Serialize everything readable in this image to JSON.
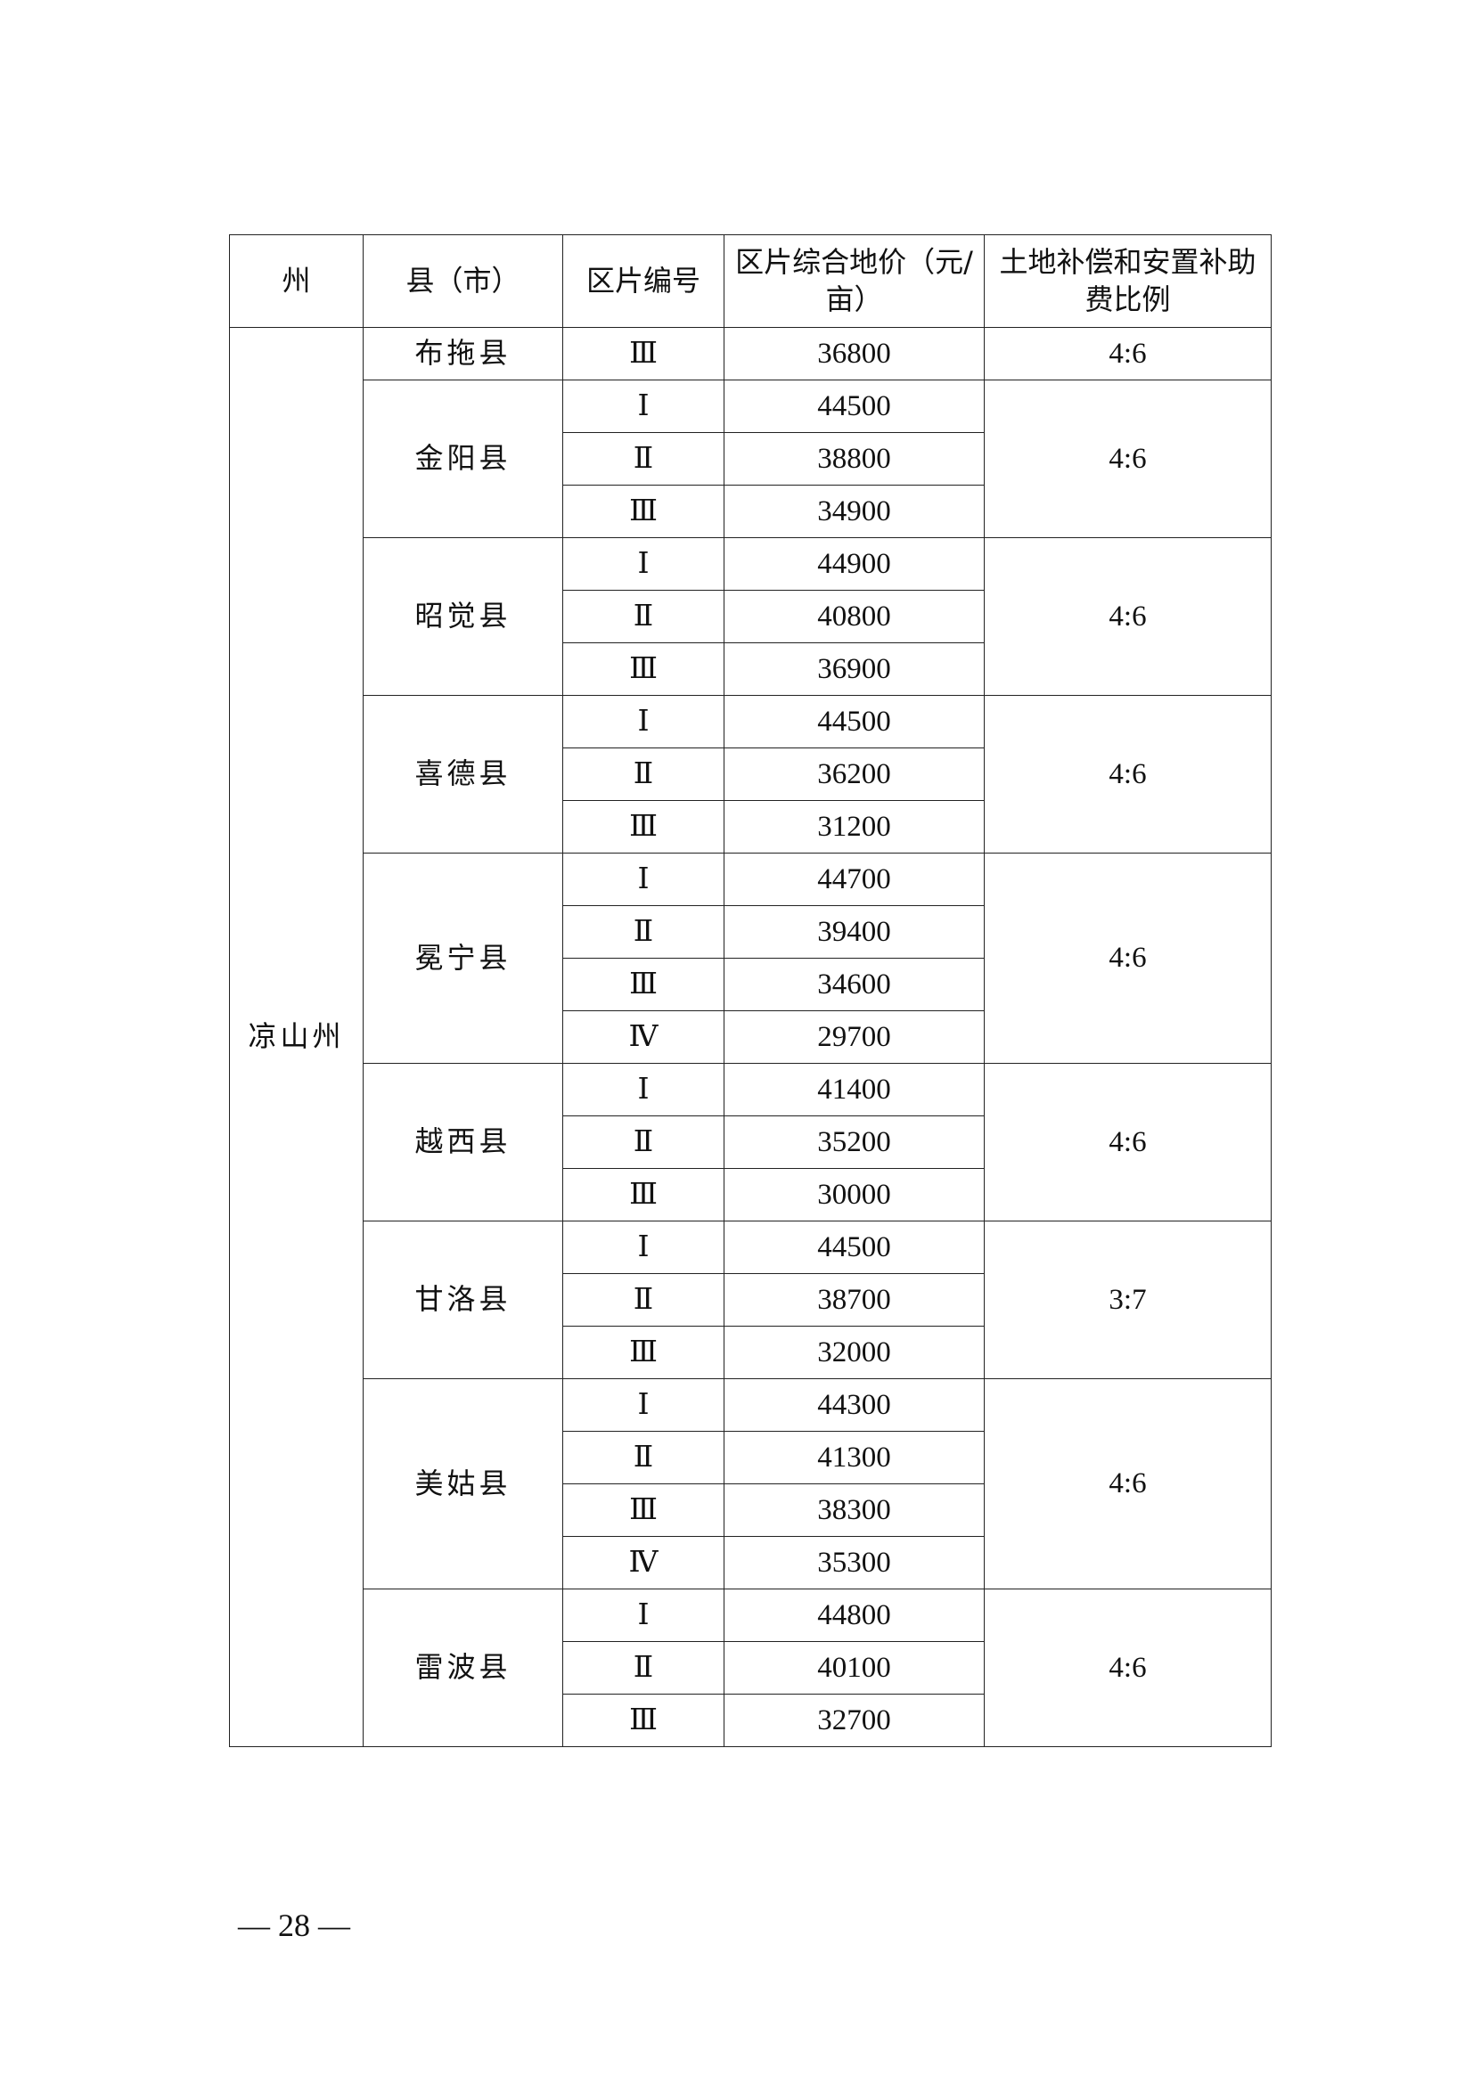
{
  "table": {
    "headers": [
      "州",
      "县（市）",
      "区片编号",
      "区片综合地价（元/亩）",
      "土地补偿和安置补助费比例"
    ],
    "prefecture": "凉山州",
    "counties": [
      {
        "name": "布拖县",
        "ratio": "4:6",
        "zones": [
          {
            "id": "Ⅲ",
            "price": "36800"
          }
        ]
      },
      {
        "name": "金阳县",
        "ratio": "4:6",
        "zones": [
          {
            "id": "Ⅰ",
            "price": "44500"
          },
          {
            "id": "Ⅱ",
            "price": "38800"
          },
          {
            "id": "Ⅲ",
            "price": "34900"
          }
        ]
      },
      {
        "name": "昭觉县",
        "ratio": "4:6",
        "zones": [
          {
            "id": "Ⅰ",
            "price": "44900"
          },
          {
            "id": "Ⅱ",
            "price": "40800"
          },
          {
            "id": "Ⅲ",
            "price": "36900"
          }
        ]
      },
      {
        "name": "喜德县",
        "ratio": "4:6",
        "zones": [
          {
            "id": "Ⅰ",
            "price": "44500"
          },
          {
            "id": "Ⅱ",
            "price": "36200"
          },
          {
            "id": "Ⅲ",
            "price": "31200"
          }
        ]
      },
      {
        "name": "冕宁县",
        "ratio": "4:6",
        "zones": [
          {
            "id": "Ⅰ",
            "price": "44700"
          },
          {
            "id": "Ⅱ",
            "price": "39400"
          },
          {
            "id": "Ⅲ",
            "price": "34600"
          },
          {
            "id": "Ⅳ",
            "price": "29700"
          }
        ]
      },
      {
        "name": "越西县",
        "ratio": "4:6",
        "zones": [
          {
            "id": "Ⅰ",
            "price": "41400"
          },
          {
            "id": "Ⅱ",
            "price": "35200"
          },
          {
            "id": "Ⅲ",
            "price": "30000"
          }
        ]
      },
      {
        "name": "甘洛县",
        "ratio": "3:7",
        "zones": [
          {
            "id": "Ⅰ",
            "price": "44500"
          },
          {
            "id": "Ⅱ",
            "price": "38700"
          },
          {
            "id": "Ⅲ",
            "price": "32000"
          }
        ]
      },
      {
        "name": "美姑县",
        "ratio": "4:6",
        "zones": [
          {
            "id": "Ⅰ",
            "price": "44300"
          },
          {
            "id": "Ⅱ",
            "price": "41300"
          },
          {
            "id": "Ⅲ",
            "price": "38300"
          },
          {
            "id": "Ⅳ",
            "price": "35300"
          }
        ]
      },
      {
        "name": "雷波县",
        "ratio": "4:6",
        "zones": [
          {
            "id": "Ⅰ",
            "price": "44800"
          },
          {
            "id": "Ⅱ",
            "price": "40100"
          },
          {
            "id": "Ⅲ",
            "price": "32700"
          }
        ]
      }
    ]
  },
  "footer": {
    "page_number": "— 28 —"
  }
}
